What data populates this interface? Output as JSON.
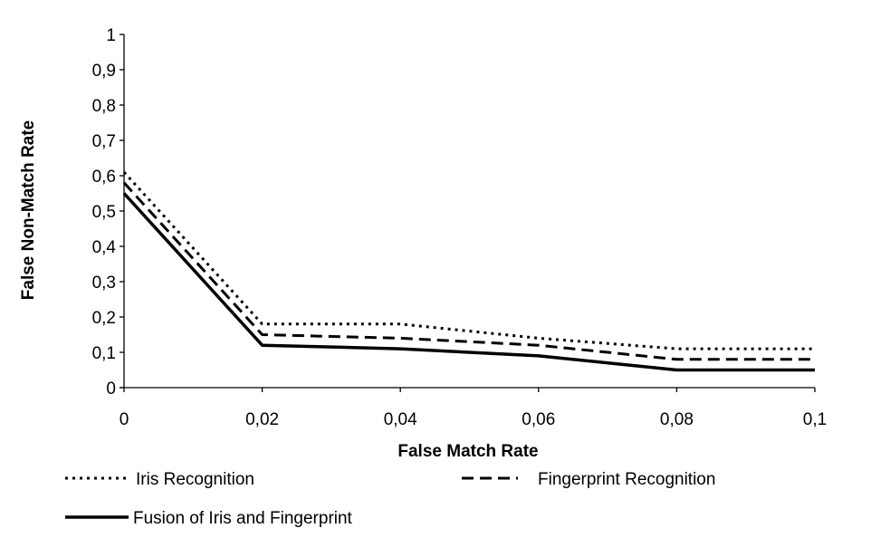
{
  "chart_data": {
    "type": "line",
    "title": "",
    "xlabel": "False Match Rate",
    "ylabel": "False Non-Match Rate",
    "xlim": [
      0,
      0.1
    ],
    "ylim": [
      0,
      1
    ],
    "x_ticks": [
      "0",
      "0,02",
      "0,04",
      "0,06",
      "0,08",
      "0,1"
    ],
    "y_ticks": [
      "0",
      "0,1",
      "0,2",
      "0,3",
      "0,4",
      "0,5",
      "0,6",
      "0,7",
      "0,8",
      "0,9",
      "1"
    ],
    "x": [
      0,
      0.02,
      0.04,
      0.06,
      0.08,
      0.1
    ],
    "series": [
      {
        "name": "Iris Recognition",
        "values": [
          0.61,
          0.18,
          0.18,
          0.14,
          0.11,
          0.11
        ],
        "style": "dotted"
      },
      {
        "name": "Fingerprint Recognition",
        "values": [
          0.58,
          0.15,
          0.14,
          0.12,
          0.08,
          0.08
        ],
        "style": "dashed"
      },
      {
        "name": "Fusion of Iris and Fingerprint",
        "values": [
          0.55,
          0.12,
          0.11,
          0.09,
          0.05,
          0.05
        ],
        "style": "solid"
      }
    ],
    "grid": false,
    "legend_position": "bottom",
    "line_color": "#000000"
  }
}
